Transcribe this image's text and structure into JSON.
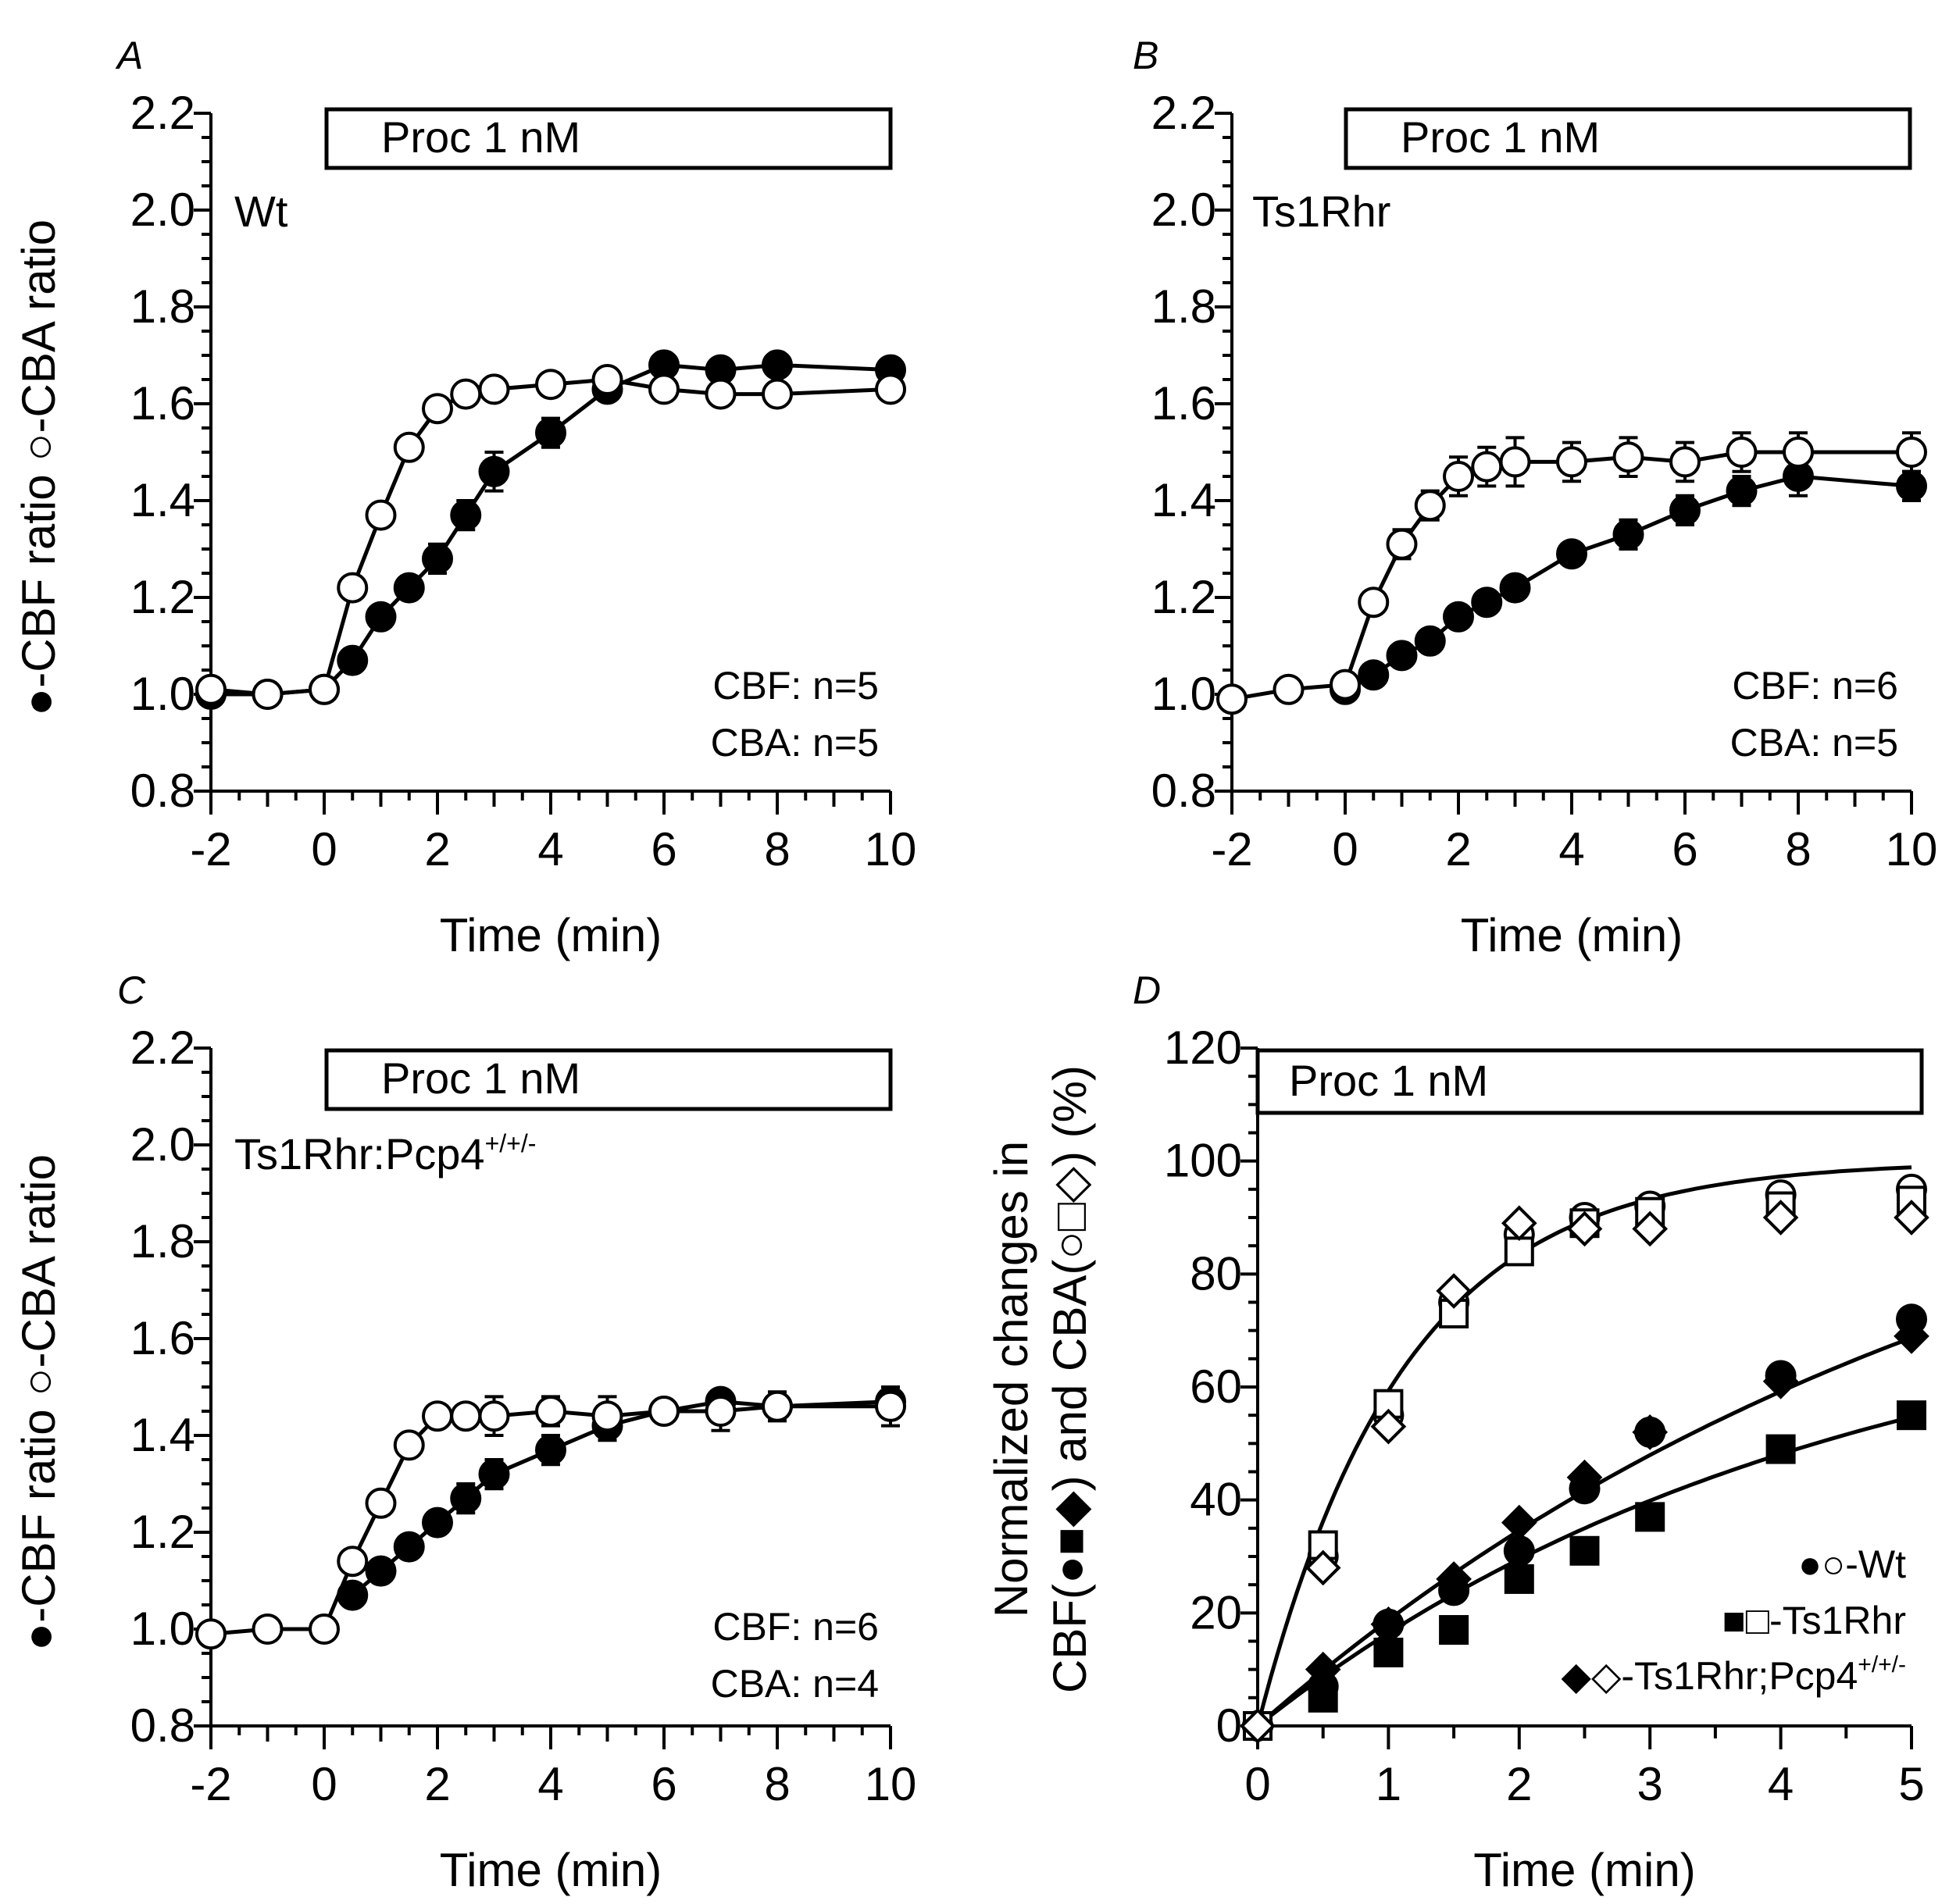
{
  "chart_data": [
    {
      "panel": "A",
      "type": "line",
      "annotation": "Wt",
      "box_label": "Proc 1 nM",
      "xlabel": "Time (min)",
      "ylabel": "-CBF ratio  -CBA ratio",
      "ylabel_parts": [
        "-CBF ratio",
        "-CBA ratio"
      ],
      "xlim": [
        -2,
        10
      ],
      "ylim": [
        0.8,
        2.2
      ],
      "xticks": [
        -2,
        0,
        2,
        4,
        6,
        8,
        10
      ],
      "yticks": [
        "0.8",
        "1.0",
        "1.2",
        "1.4",
        "1.6",
        "1.8",
        "2.0",
        "2.2"
      ],
      "n_labels": [
        "CBF: n=5",
        "CBA: n=5"
      ],
      "series": [
        {
          "name": "CBF",
          "marker": "circle-filled",
          "x": [
            -2,
            -1,
            0,
            0.5,
            1,
            1.5,
            2,
            2.5,
            3,
            4,
            5,
            6,
            7,
            8,
            10
          ],
          "y": [
            1.0,
            1.0,
            1.01,
            1.07,
            1.16,
            1.22,
            1.28,
            1.37,
            1.46,
            1.54,
            1.63,
            1.68,
            1.67,
            1.68,
            1.67
          ],
          "err": [
            0.01,
            0.01,
            0.01,
            0.02,
            0.02,
            0.02,
            0.03,
            0.03,
            0.04,
            0.03,
            0.02,
            0.02,
            0.02,
            0.02,
            0.02
          ]
        },
        {
          "name": "CBA",
          "marker": "circle-open",
          "x": [
            -2,
            -1,
            0,
            0.5,
            1,
            1.5,
            2,
            2.5,
            3,
            4,
            5,
            6,
            7,
            8,
            10
          ],
          "y": [
            1.01,
            1.0,
            1.01,
            1.22,
            1.37,
            1.51,
            1.59,
            1.62,
            1.63,
            1.64,
            1.65,
            1.63,
            1.62,
            1.62,
            1.63
          ],
          "err": [
            0.01,
            0.01,
            0.01,
            0.02,
            0.02,
            0.02,
            0.02,
            0.02,
            0.02,
            0.02,
            0.02,
            0.02,
            0.02,
            0.02,
            0.02
          ]
        }
      ]
    },
    {
      "panel": "B",
      "type": "line",
      "annotation": "Ts1Rhr",
      "box_label": "Proc 1 nM",
      "xlabel": "Time (min)",
      "ylabel": "",
      "xlim": [
        -2,
        10
      ],
      "ylim": [
        0.8,
        2.2
      ],
      "xticks": [
        -2,
        0,
        2,
        4,
        6,
        8,
        10
      ],
      "yticks": [
        "0.8",
        "1.0",
        "1.2",
        "1.4",
        "1.6",
        "1.8",
        "2.0",
        "2.2"
      ],
      "n_labels": [
        "CBF: n=6",
        "CBA: n=5"
      ],
      "series": [
        {
          "name": "CBF",
          "marker": "circle-filled",
          "x": [
            0,
            0.5,
            1,
            1.5,
            2,
            2.5,
            3,
            4,
            5,
            6,
            7,
            8,
            10
          ],
          "y": [
            1.01,
            1.04,
            1.08,
            1.11,
            1.16,
            1.19,
            1.22,
            1.29,
            1.33,
            1.38,
            1.42,
            1.45,
            1.43
          ],
          "err": [
            0.01,
            0.01,
            0.01,
            0.01,
            0.01,
            0.01,
            0.02,
            0.02,
            0.03,
            0.03,
            0.03,
            0.04,
            0.03
          ]
        },
        {
          "name": "CBA",
          "marker": "circle-open",
          "x": [
            -2,
            -1,
            0,
            0.5,
            1,
            1.5,
            2,
            2.5,
            3,
            4,
            5,
            6,
            7,
            8,
            10
          ],
          "y": [
            0.99,
            1.01,
            1.02,
            1.19,
            1.31,
            1.39,
            1.45,
            1.47,
            1.48,
            1.48,
            1.49,
            1.48,
            1.5,
            1.5,
            1.5
          ],
          "err": [
            0.01,
            0.01,
            0.01,
            0.02,
            0.03,
            0.03,
            0.04,
            0.04,
            0.05,
            0.04,
            0.04,
            0.04,
            0.04,
            0.04,
            0.04
          ]
        }
      ]
    },
    {
      "panel": "C",
      "type": "line",
      "annotation": "Ts1Rhr:Pcp4",
      "annotation_sup": "+/+/-",
      "box_label": "Proc 1 nM",
      "xlabel": "Time (min)",
      "ylabel": "-CBF ratio  -CBA ratio",
      "ylabel_parts": [
        "-CBF ratio",
        "-CBA ratio"
      ],
      "xlim": [
        -2,
        10
      ],
      "ylim": [
        0.8,
        2.2
      ],
      "xticks": [
        -2,
        0,
        2,
        4,
        6,
        8,
        10
      ],
      "yticks": [
        "0.8",
        "1.0",
        "1.2",
        "1.4",
        "1.6",
        "1.8",
        "2.0",
        "2.2"
      ],
      "n_labels": [
        "CBF: n=6",
        "CBA: n=4"
      ],
      "series": [
        {
          "name": "CBF",
          "marker": "circle-filled",
          "x": [
            0.5,
            1,
            1.5,
            2,
            2.5,
            3,
            4,
            5,
            6,
            7,
            8,
            10
          ],
          "y": [
            1.07,
            1.12,
            1.17,
            1.22,
            1.27,
            1.32,
            1.37,
            1.42,
            1.45,
            1.47,
            1.46,
            1.47
          ],
          "err": [
            0.01,
            0.01,
            0.02,
            0.02,
            0.03,
            0.03,
            0.03,
            0.03,
            0.02,
            0.02,
            0.02,
            0.02
          ]
        },
        {
          "name": "CBA",
          "marker": "circle-open",
          "x": [
            -2,
            -1,
            0,
            0.5,
            1,
            1.5,
            2,
            2.5,
            3,
            4,
            5,
            6,
            7,
            8,
            10
          ],
          "y": [
            0.99,
            1.0,
            1.0,
            1.14,
            1.26,
            1.38,
            1.44,
            1.44,
            1.44,
            1.45,
            1.44,
            1.45,
            1.45,
            1.46,
            1.46
          ],
          "err": [
            0.01,
            0.01,
            0.01,
            0.02,
            0.02,
            0.02,
            0.02,
            0.02,
            0.04,
            0.03,
            0.04,
            0.02,
            0.04,
            0.03,
            0.04
          ]
        }
      ]
    },
    {
      "panel": "D",
      "type": "scatter",
      "box_label": "Proc 1 nM",
      "xlabel": "Time (min)",
      "ylabel_line1": "Normalized changes in",
      "ylabel_line2": "CBF(●■◆) and CBA(○□◇) (%)",
      "xlim": [
        0,
        5
      ],
      "ylim": [
        0,
        120
      ],
      "xticks": [
        0,
        1,
        2,
        3,
        4,
        5
      ],
      "yticks": [
        0,
        20,
        40,
        60,
        80,
        100,
        120
      ],
      "legend": [
        {
          "symbols": "●○",
          "label": "-Wt"
        },
        {
          "symbols": "■□",
          "label": "-Ts1Rhr"
        },
        {
          "symbols": "◆◇",
          "label": "-Ts1Rhr;Pcp4",
          "sup": "+/+/-"
        }
      ],
      "series": [
        {
          "name": "CBF Wt",
          "marker": "circle-filled",
          "x": [
            0,
            0.5,
            1,
            1.5,
            2,
            2.5,
            3,
            4,
            5
          ],
          "y": [
            0,
            7,
            18,
            24,
            31,
            42,
            52,
            62,
            72
          ]
        },
        {
          "name": "CBF Ts1Rhr",
          "marker": "square-filled",
          "x": [
            0,
            0.5,
            1,
            1.5,
            2,
            2.5,
            3,
            4,
            5
          ],
          "y": [
            0,
            5,
            13,
            17,
            26,
            31,
            37,
            49,
            55
          ]
        },
        {
          "name": "CBF Ts1Rhr;Pcp4",
          "marker": "diamond-filled",
          "x": [
            0,
            0.5,
            1,
            1.5,
            2,
            2.5,
            3,
            4,
            5
          ],
          "y": [
            0,
            10,
            18,
            26,
            36,
            44,
            52,
            61,
            69
          ]
        },
        {
          "name": "CBA Wt",
          "marker": "circle-open",
          "x": [
            0,
            0.5,
            1,
            1.5,
            2,
            2.5,
            3,
            4,
            5
          ],
          "y": [
            0,
            30,
            55,
            75,
            87,
            90,
            92,
            94,
            95
          ]
        },
        {
          "name": "CBA Ts1Rhr",
          "marker": "square-open",
          "x": [
            0,
            0.5,
            1,
            1.5,
            2,
            2.5,
            3,
            4,
            5
          ],
          "y": [
            0,
            32,
            57,
            73,
            84,
            89,
            91,
            92,
            93
          ]
        },
        {
          "name": "CBA Ts1Rhr;Pcp4",
          "marker": "diamond-open",
          "x": [
            0,
            0.5,
            1,
            1.5,
            2,
            2.5,
            3,
            4,
            5
          ],
          "y": [
            0,
            28,
            53,
            77,
            89,
            88,
            88,
            90,
            90
          ]
        }
      ],
      "fit_curves": [
        {
          "name": "CBA fit",
          "plateau": 100,
          "rate": 0.9
        },
        {
          "name": "CBF Ts1Rhr;Pcp4 fit",
          "plateau": 120,
          "rate": 0.17
        },
        {
          "name": "CBF Ts1Rhr fit",
          "plateau": 80,
          "rate": 0.23
        }
      ]
    }
  ]
}
